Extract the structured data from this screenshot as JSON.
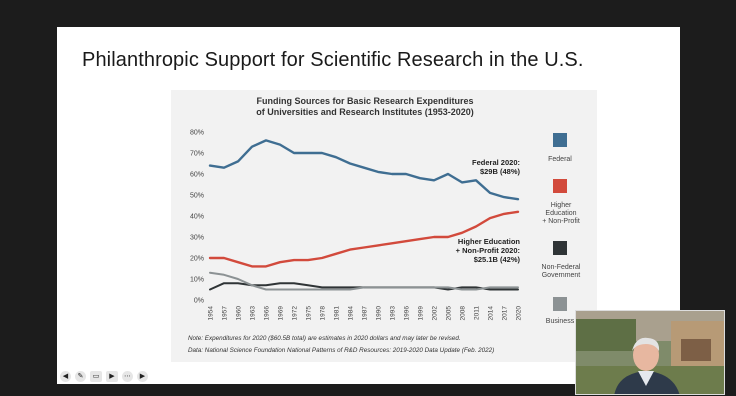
{
  "slide": {
    "title": "Philanthropic Support for Scientific Research in the U.S."
  },
  "chart_data": {
    "type": "line",
    "title": "Funding Sources for Basic Research Expenditures",
    "subtitle": "of Universities and Research Institutes (1953-2020)",
    "ylim": [
      0,
      80
    ],
    "yticks": [
      "0%",
      "10%",
      "20%",
      "30%",
      "40%",
      "50%",
      "60%",
      "70%",
      "80%"
    ],
    "x": [
      "1954",
      "1957",
      "1960",
      "1963",
      "1966",
      "1969",
      "1972",
      "1975",
      "1978",
      "1981",
      "1984",
      "1987",
      "1990",
      "1993",
      "1996",
      "1999",
      "2002",
      "2005",
      "2008",
      "2011",
      "2014",
      "2017",
      "2020"
    ],
    "series": [
      {
        "name": "Federal",
        "color": "#3f6e92",
        "values": [
          64,
          63,
          66,
          73,
          76,
          74,
          70,
          70,
          70,
          68,
          65,
          63,
          61,
          60,
          60,
          58,
          57,
          60,
          56,
          57,
          51,
          49,
          48
        ]
      },
      {
        "name": "Higher Education + Non-Profit",
        "color": "#d24a3c",
        "values": [
          20,
          20,
          18,
          16,
          16,
          18,
          19,
          19,
          20,
          22,
          24,
          25,
          26,
          27,
          28,
          29,
          30,
          30,
          32,
          35,
          39,
          41,
          42
        ]
      },
      {
        "name": "Non-Federal Government",
        "color": "#2f3436",
        "values": [
          5,
          8,
          8,
          7,
          7,
          8,
          8,
          7,
          6,
          6,
          6,
          6,
          6,
          6,
          6,
          6,
          6,
          5,
          6,
          6,
          5,
          5,
          5
        ]
      },
      {
        "name": "Business",
        "color": "#8c9294",
        "values": [
          13,
          12,
          10,
          7,
          5,
          5,
          5,
          5,
          5,
          5,
          5,
          6,
          6,
          6,
          6,
          6,
          6,
          6,
          5,
          5,
          6,
          6,
          6
        ]
      }
    ],
    "legend": [
      "Federal",
      "Higher Education + Non-Profit",
      "Non-Federal Government",
      "Business"
    ],
    "annotations": [
      {
        "lines": [
          "Federal 2020:",
          "$29B (48%)"
        ]
      },
      {
        "lines": [
          "Higher Education",
          "+ Non-Profit 2020:",
          "$25.1B (42%)"
        ]
      }
    ],
    "notes": [
      "Note: Expenditures for 2020 ($60.5B total) are estimates in 2020 dollars and may later be revised.",
      "Data: National Science Foundation National Patterns of R&D Resources: 2019-2020 Data Update (Feb. 2022)"
    ]
  },
  "controls": [
    "back-icon",
    "pen-icon",
    "cc-icon",
    "video-icon",
    "more-icon",
    "forward-icon"
  ]
}
